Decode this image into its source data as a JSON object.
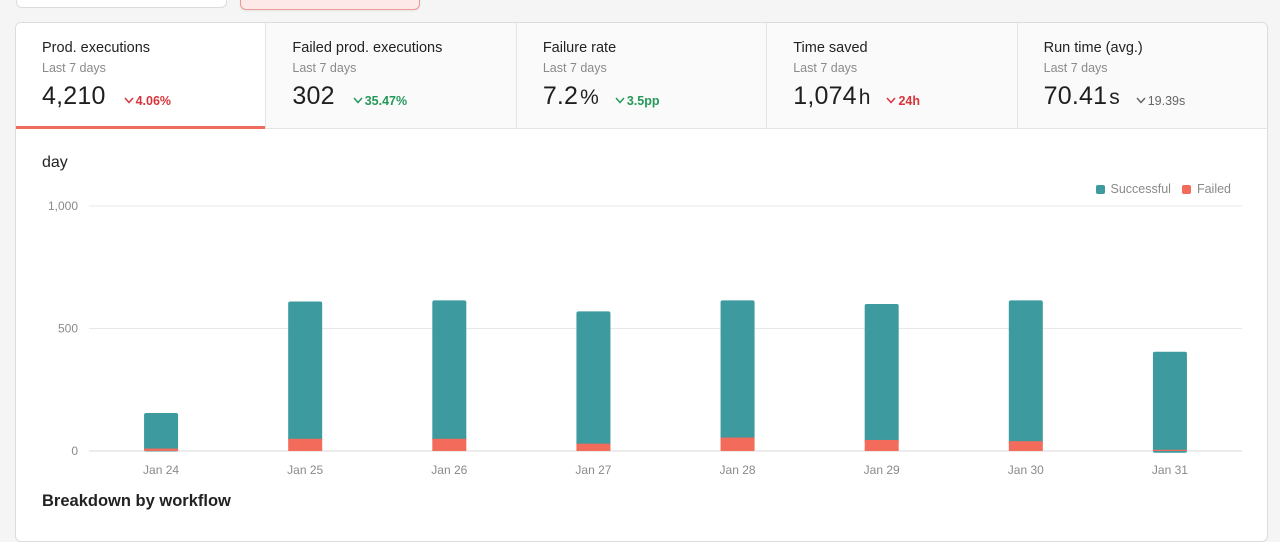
{
  "kpis": [
    {
      "title": "Prod. executions",
      "subtitle": "Last 7 days",
      "value": "4,210",
      "unit": "",
      "delta": "4.06%",
      "delta_color": "red",
      "active": true
    },
    {
      "title": "Failed prod. executions",
      "subtitle": "Last 7 days",
      "value": "302",
      "unit": "",
      "delta": "35.47%",
      "delta_color": "green",
      "active": false
    },
    {
      "title": "Failure rate",
      "subtitle": "Last 7 days",
      "value": "7.2",
      "unit": "%",
      "delta": "3.5pp",
      "delta_color": "green",
      "active": false
    },
    {
      "title": "Time saved",
      "subtitle": "Last 7 days",
      "value": "1,074",
      "unit": "h",
      "delta": "24h",
      "delta_color": "red",
      "active": false
    },
    {
      "title": "Run time (avg.)",
      "subtitle": "Last 7 days",
      "value": "70.41",
      "unit": "s",
      "delta": "19.39s",
      "delta_color": "gray",
      "active": false
    }
  ],
  "chart": {
    "title": "day"
  },
  "breakdown": {
    "title": "Breakdown by workflow"
  },
  "colors": {
    "successful": "#3d9a9e",
    "failed": "#f26b5b",
    "accent": "#ef6c5f"
  },
  "chart_data": {
    "type": "bar",
    "stacked": true,
    "title": "day",
    "categories": [
      "Jan 24",
      "Jan 25",
      "Jan 26",
      "Jan 27",
      "Jan 28",
      "Jan 29",
      "Jan 30",
      "Jan 31"
    ],
    "series": [
      {
        "name": "Successful",
        "values": [
          145,
          560,
          565,
          540,
          560,
          555,
          575,
          400
        ]
      },
      {
        "name": "Failed",
        "values": [
          10,
          50,
          50,
          30,
          55,
          45,
          40,
          5
        ]
      }
    ],
    "yticks": [
      "0",
      "500",
      "1,000"
    ],
    "ylim": [
      0,
      1000
    ],
    "grid": true,
    "legend": "top-right"
  }
}
